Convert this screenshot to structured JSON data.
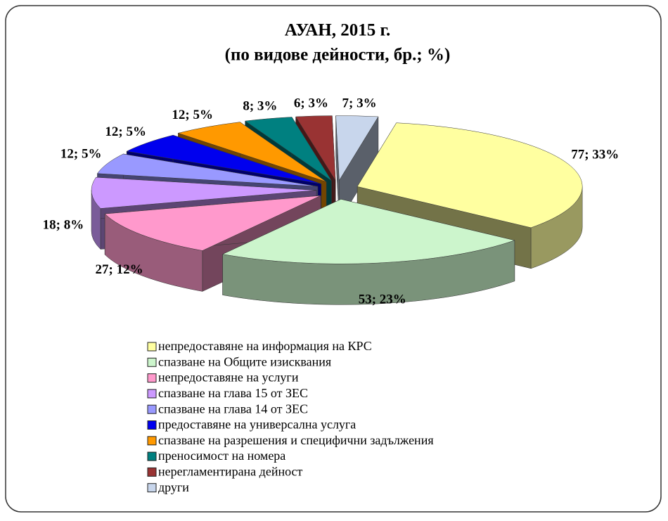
{
  "chart_data": {
    "type": "pie",
    "title": "АУАН, 2015 г.",
    "subtitle": "(по видове дейности, бр.; %)",
    "categories": [
      "непредоставяне на информация на КРС",
      "спазване на Общите изисквания",
      "непредоставяне на услуги",
      "спазване на глава 15 от ЗЕС",
      "спазване на глава 14 от ЗЕС",
      "предоставяне на универсална услуга",
      "спазване на разрешения и специфични задължения",
      "преносимост на номера",
      "нерегламентирана дейност",
      "други"
    ],
    "values": [
      77,
      53,
      27,
      18,
      12,
      12,
      12,
      8,
      6,
      7
    ],
    "value_labels": [
      "77; 33%",
      "53; 23%",
      "27; 12%",
      "18; 8%",
      "12; 5%",
      "12; 5%",
      "12; 5%",
      "8; 3%",
      "6; 3%",
      "7; 3%"
    ],
    "colors": [
      "#ffffa0",
      "#ccf5cc",
      "#ff99cc",
      "#cc99ff",
      "#9999ff",
      "#0000ee",
      "#ff9900",
      "#008080",
      "#993333",
      "#c8d6ec"
    ]
  }
}
